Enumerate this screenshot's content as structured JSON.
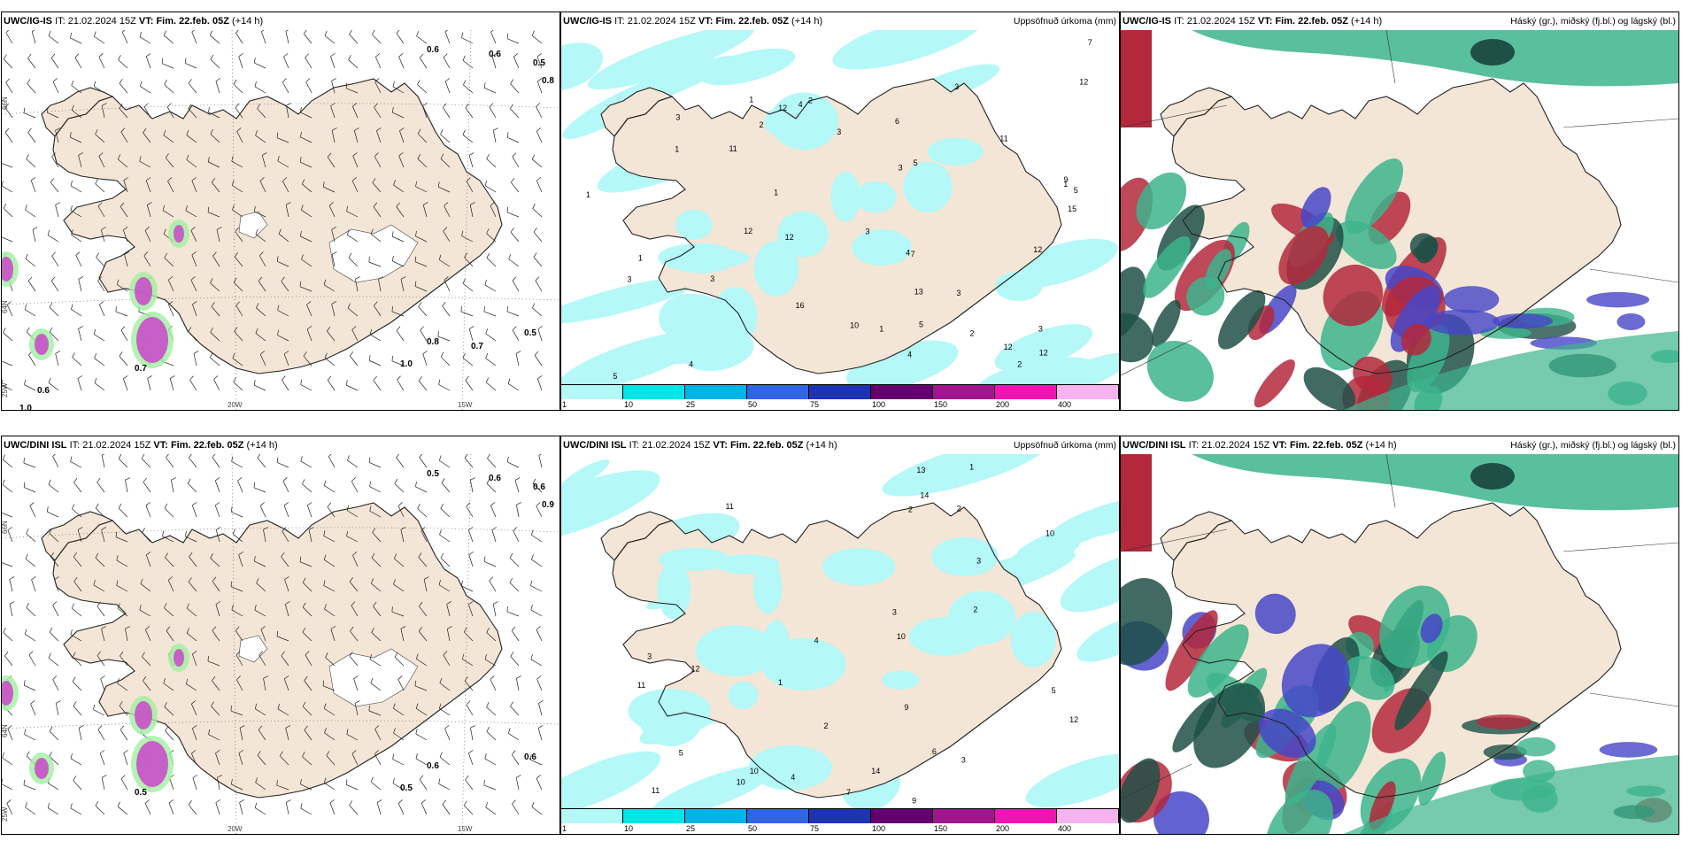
{
  "panels": [
    {
      "id": "p1",
      "title_model": "UWC/IG-IS",
      "it_label": "IT:",
      "it_value": "21.02.2024 15Z",
      "vt_label": "VT:",
      "vt_value": "Fim. 22.feb. 05Z",
      "lead": "(+14 h)",
      "right_title": "",
      "type": "wind"
    },
    {
      "id": "p2",
      "title_model": "UWC/IG-IS",
      "it_label": "IT:",
      "it_value": "21.02.2024 15Z",
      "vt_label": "VT:",
      "vt_value": "Fim. 22.feb. 05Z",
      "lead": "(+14 h)",
      "right_title": "Uppsöfnuð úrkoma (mm)",
      "type": "precip"
    },
    {
      "id": "p3",
      "title_model": "UWC/IG-IS",
      "it_label": "IT:",
      "it_value": "21.02.2024 15Z",
      "vt_label": "VT:",
      "vt_value": "Fim. 22.feb. 05Z",
      "lead": "(+14 h)",
      "right_title": "Háský (gr.), miðský (fj.bl.) og lágský (bl.)",
      "type": "cloud"
    },
    {
      "id": "p4",
      "title_model": "UWC/DINI ISL",
      "it_label": "IT:",
      "it_value": "21.02.2024 15Z",
      "vt_label": "VT:",
      "vt_value": "Fim. 22.feb. 05Z",
      "lead": "(+14 h)",
      "right_title": "",
      "type": "wind"
    },
    {
      "id": "p5",
      "title_model": "UWC/DINI ISL",
      "it_label": "IT:",
      "it_value": "21.02.2024 15Z",
      "vt_label": "VT:",
      "vt_value": "Fim. 22.feb. 05Z",
      "lead": "(+14 h)",
      "right_title": "Uppsöfnuð úrkoma (mm)",
      "type": "precip"
    },
    {
      "id": "p6",
      "title_model": "UWC/DINI ISL",
      "it_label": "IT:",
      "it_value": "21.02.2024 15Z",
      "vt_label": "VT:",
      "vt_value": "Fim. 22.feb. 05Z",
      "lead": "(+14 h)",
      "right_title": "Háský (gr.), miðský (fj.bl.) og lágský (bl.)",
      "type": "cloud"
    }
  ],
  "axis_labels": {
    "lat66": "66N",
    "lat64": "64N",
    "lat63": "63N",
    "lon25": "25W",
    "lon20": "20W",
    "lon15": "15W"
  },
  "colorbar": {
    "labels": [
      "1",
      "10",
      "25",
      "50",
      "75",
      "100",
      "150",
      "200",
      "400"
    ],
    "colors": [
      "#b4f8f8",
      "#00e6e6",
      "#00b4e6",
      "#3264e6",
      "#1e32b4",
      "#64006e",
      "#a0148c",
      "#f014b4",
      "#f5b4f0"
    ]
  },
  "wind_values_top": [
    "0.6",
    "0.5",
    "0.6",
    "0.8",
    "0.8",
    "0.5",
    "0.7",
    "1.0",
    "0.7",
    "1.0",
    "0.6"
  ],
  "wind_values_bottom": [
    "0.6",
    "0.6",
    "0.5",
    "0.9",
    "0.6",
    "0.6",
    "0.5",
    "0.5"
  ],
  "precip_values_top": [
    "16",
    "4",
    "4",
    "3",
    "5",
    "3",
    "12",
    "6",
    "3",
    "1",
    "2",
    "1",
    "3",
    "5",
    "3",
    "7",
    "12",
    "4",
    "5",
    "3",
    "2",
    "3",
    "1",
    "1",
    "12",
    "15",
    "11",
    "13",
    "12",
    "12",
    "12",
    "10",
    "11",
    "9",
    "7",
    "12",
    "3",
    "4",
    "5",
    "3",
    "2",
    "1",
    "2",
    "1",
    "1"
  ],
  "precip_values_bottom": [
    "10",
    "10",
    "9",
    "14",
    "2",
    "3",
    "4",
    "5",
    "11",
    "12",
    "13",
    "12",
    "14",
    "10",
    "11",
    "9",
    "7",
    "6",
    "4",
    "3",
    "2",
    "1",
    "5",
    "3",
    "2",
    "1",
    "11",
    "10",
    "2",
    "3"
  ],
  "colors": {
    "land": "#f4e6d6",
    "coast": "#222222",
    "precip_light": "#b4f8f8",
    "cloud_high": "#3cb48c",
    "cloud_mid": "#1e5046",
    "cloud_low": "#4646c8",
    "cloud_red": "#b4283c",
    "wind_pink": "#c850c8",
    "wind_green": "#a0f0a0"
  }
}
